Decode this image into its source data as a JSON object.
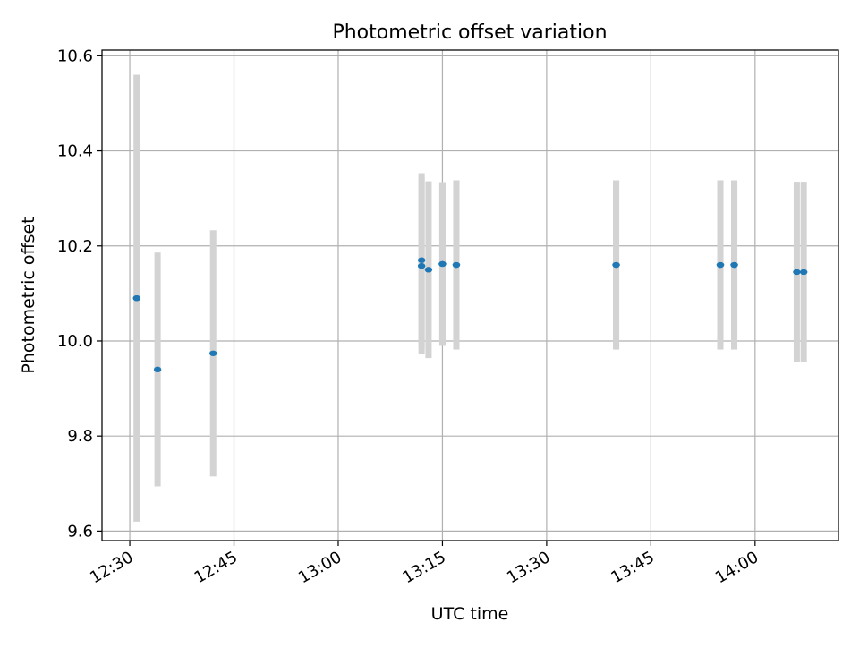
{
  "chart_data": {
    "type": "scatter",
    "title": "Photometric offset variation",
    "xlabel": "UTC time",
    "ylabel": "Photometric offset",
    "x_axis_type": "time",
    "x_tick_labels": [
      "12:30",
      "12:45",
      "13:00",
      "13:15",
      "13:30",
      "13:45",
      "14:00"
    ],
    "y_tick_labels": [
      "9.6",
      "9.8",
      "10.0",
      "10.2",
      "10.4",
      "10.6"
    ],
    "xlim": [
      "12:26",
      "14:12"
    ],
    "ylim": [
      9.58,
      10.612
    ],
    "grid": true,
    "marker_color": "#1f77b4",
    "errorbar_color": "#d3d3d3",
    "points": [
      {
        "time": "12:31",
        "value": 10.09,
        "error": 0.47
      },
      {
        "time": "12:31",
        "value": 10.09,
        "error": 0.47
      },
      {
        "time": "12:34",
        "value": 9.94,
        "error": 0.246
      },
      {
        "time": "12:42",
        "value": 9.974,
        "error": 0.259
      },
      {
        "time": "13:12",
        "value": 10.17,
        "error": 0.183
      },
      {
        "time": "13:12",
        "value": 10.158,
        "error": 0.186
      },
      {
        "time": "13:13",
        "value": 10.15,
        "error": 0.186
      },
      {
        "time": "13:15",
        "value": 10.162,
        "error": 0.172
      },
      {
        "time": "13:15",
        "value": 10.162,
        "error": 0.172
      },
      {
        "time": "13:17",
        "value": 10.16,
        "error": 0.178
      },
      {
        "time": "13:17",
        "value": 10.16,
        "error": 0.178
      },
      {
        "time": "13:40",
        "value": 10.16,
        "error": 0.178
      },
      {
        "time": "13:40",
        "value": 10.16,
        "error": 0.178
      },
      {
        "time": "13:55",
        "value": 10.16,
        "error": 0.178
      },
      {
        "time": "13:55",
        "value": 10.16,
        "error": 0.178
      },
      {
        "time": "13:57",
        "value": 10.16,
        "error": 0.178
      },
      {
        "time": "13:57",
        "value": 10.16,
        "error": 0.178
      },
      {
        "time": "14:06",
        "value": 10.145,
        "error": 0.19
      },
      {
        "time": "14:07",
        "value": 10.145,
        "error": 0.19
      }
    ]
  }
}
